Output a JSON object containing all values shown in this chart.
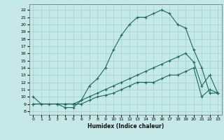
{
  "title": "",
  "xlabel": "Humidex (Indice chaleur)",
  "xlim": [
    -0.5,
    23.5
  ],
  "ylim": [
    7.5,
    22.8
  ],
  "yticks": [
    8,
    9,
    10,
    11,
    12,
    13,
    14,
    15,
    16,
    17,
    18,
    19,
    20,
    21,
    22
  ],
  "xticks": [
    0,
    1,
    2,
    3,
    4,
    5,
    6,
    7,
    8,
    9,
    10,
    11,
    12,
    13,
    14,
    15,
    16,
    17,
    18,
    19,
    20,
    21,
    22,
    23
  ],
  "bg_color": "#c5e8e8",
  "line_color": "#1a6b5a",
  "grid_color": "#9dcfcf",
  "line1_x": [
    0,
    1,
    2,
    3,
    4,
    5,
    6,
    7,
    8,
    9,
    10,
    11,
    12,
    13,
    14,
    15,
    16,
    17,
    18,
    19,
    20,
    21,
    22,
    23
  ],
  "line1_y": [
    10,
    9,
    9,
    9,
    8.5,
    8.5,
    9.5,
    11.5,
    12.5,
    14,
    16.5,
    18.5,
    20,
    21,
    21,
    21.5,
    22,
    21.5,
    20,
    19.5,
    16.5,
    14,
    10.5,
    10.5
  ],
  "line2_x": [
    0,
    3,
    4,
    5,
    6,
    7,
    8,
    9,
    10,
    11,
    12,
    13,
    14,
    15,
    16,
    17,
    18,
    19,
    20,
    21,
    22,
    23
  ],
  "line2_y": [
    9,
    9,
    9,
    9,
    9.5,
    10,
    10.5,
    11,
    11.5,
    12,
    12.5,
    13,
    13.5,
    14,
    14.5,
    15,
    15.5,
    16,
    14.8,
    11.5,
    13,
    10.5
  ],
  "line3_x": [
    0,
    3,
    4,
    5,
    6,
    7,
    8,
    9,
    10,
    11,
    12,
    13,
    14,
    15,
    16,
    17,
    18,
    19,
    20,
    21,
    22,
    23
  ],
  "line3_y": [
    9,
    9,
    9,
    9,
    9,
    9.5,
    10,
    10.2,
    10.5,
    11,
    11.5,
    12,
    12,
    12,
    12.5,
    13,
    13,
    13.5,
    14,
    10,
    11,
    10.5
  ]
}
